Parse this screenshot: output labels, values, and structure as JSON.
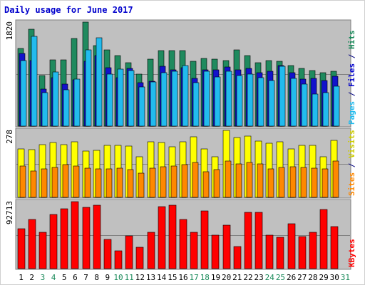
{
  "chart_data": {
    "type": "bar",
    "title": "Daily usage for June 2017",
    "categories": [
      "1",
      "2",
      "3",
      "4",
      "5",
      "6",
      "7",
      "8",
      "9",
      "10",
      "11",
      "12",
      "13",
      "14",
      "15",
      "16",
      "17",
      "18",
      "19",
      "20",
      "21",
      "22",
      "23",
      "24",
      "25",
      "26",
      "27",
      "28",
      "29",
      "30",
      "31"
    ],
    "weekend_days": [
      "3",
      "4",
      "10",
      "11",
      "17",
      "18",
      "24",
      "25",
      "31"
    ],
    "panels": [
      {
        "name": "requests",
        "max_label": "1820",
        "ymax": 1820,
        "axis_label_parts": [
          {
            "text": "Pages",
            "color": "#22bbee"
          },
          {
            "text": " / ",
            "color": "#000080"
          },
          {
            "text": "Files",
            "color": "#0000cc"
          },
          {
            "text": " / ",
            "color": "#000080"
          },
          {
            "text": "Hits",
            "color": "#1a8a5a"
          }
        ],
        "series": [
          {
            "name": "Hits",
            "color": "#1f8a5e",
            "values": [
              1360,
              1690,
              880,
              1160,
              1160,
              1530,
              1820,
              1410,
              1330,
              1240,
              1110,
              910,
              1170,
              1320,
              1320,
              1320,
              1130,
              1180,
              1170,
              1150,
              1330,
              1230,
              1110,
              1150,
              1130,
              1060,
              1010,
              970,
              930,
              960,
              null
            ]
          },
          {
            "name": "Files",
            "color": "#1212cc",
            "values": [
              1270,
              1150,
              650,
              850,
              740,
              810,
              1140,
              1240,
              1020,
              850,
              1010,
              760,
              790,
              1050,
              980,
              1020,
              840,
              990,
              990,
              1030,
              990,
              1010,
              940,
              960,
              1060,
              930,
              820,
              830,
              800,
              870,
              null
            ]
          },
          {
            "name": "Pages",
            "color": "#22bbee",
            "values": [
              1150,
              1570,
              580,
              950,
              630,
              820,
              1340,
              1550,
              910,
              1000,
              970,
              690,
              770,
              940,
              960,
              1060,
              760,
              960,
              860,
              960,
              880,
              910,
              850,
              800,
              1050,
              840,
              730,
              560,
              580,
              700,
              null
            ]
          }
        ]
      },
      {
        "name": "visitors",
        "max_label": "278",
        "ymax": 278,
        "axis_label_parts": [
          {
            "text": "Sites",
            "color": "#ff8800"
          },
          {
            "text": " / ",
            "color": "#000080"
          },
          {
            "text": "Visits",
            "color": "#cccc00"
          }
        ],
        "series": [
          {
            "name": "Visits",
            "color": "#ffff00",
            "values": [
              200,
              198,
              218,
              228,
              218,
              230,
              192,
              195,
              215,
              215,
              212,
              170,
              230,
              228,
              210,
              230,
              250,
              200,
              170,
              278,
              248,
              255,
              233,
              225,
              231,
              202,
              215,
              216,
              168,
              238,
              null
            ]
          },
          {
            "name": "Sites",
            "color": "#ff8800",
            "values": [
              130,
              110,
              118,
              125,
              135,
              130,
              120,
              118,
              118,
              120,
              115,
              100,
              122,
              128,
              130,
              135,
              145,
              105,
              115,
              150,
              140,
              145,
              140,
              118,
              125,
              128,
              125,
              120,
              118,
              150,
              null
            ]
          }
        ]
      },
      {
        "name": "kbytes",
        "max_label": "92713",
        "ymax": 92713,
        "axis_label_parts": [
          {
            "text": "KBytes",
            "color": "#ff0000"
          }
        ],
        "series": [
          {
            "name": "KBytes",
            "color": "#ff0000",
            "values": [
              55000,
              68000,
              50000,
              75000,
              83000,
              92713,
              85000,
              88000,
              40000,
              25000,
              45000,
              30000,
              50000,
              86000,
              88000,
              68000,
              50000,
              80000,
              46000,
              60000,
              31000,
              78000,
              78000,
              46000,
              43000,
              62000,
              44000,
              50000,
              82000,
              58000,
              null
            ]
          }
        ]
      }
    ]
  }
}
